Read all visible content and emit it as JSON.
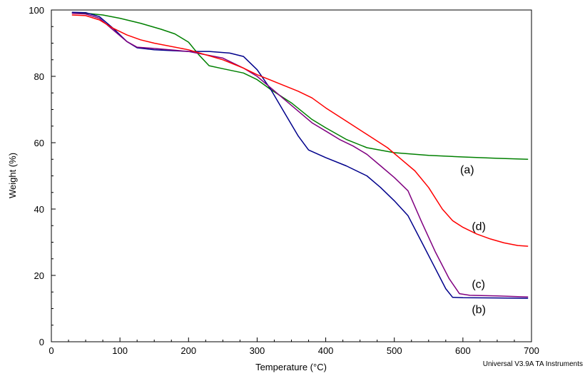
{
  "chart_data": {
    "type": "line",
    "title": "",
    "xlabel": "Temperature (°C)",
    "ylabel": "Weight (%)",
    "xlim": [
      0,
      700
    ],
    "ylim": [
      0,
      100
    ],
    "xticks": [
      0,
      100,
      200,
      300,
      400,
      500,
      600,
      700
    ],
    "yticks": [
      0,
      20,
      40,
      60,
      80,
      100
    ],
    "grid": false,
    "legend": "none",
    "series": [
      {
        "label": "(a)",
        "color": "#008000",
        "points": [
          [
            30,
            99.2
          ],
          [
            50,
            99.0
          ],
          [
            75,
            98.5
          ],
          [
            100,
            97.5
          ],
          [
            130,
            96.0
          ],
          [
            160,
            94.2
          ],
          [
            180,
            92.8
          ],
          [
            200,
            90.3
          ],
          [
            215,
            86.5
          ],
          [
            230,
            83.2
          ],
          [
            250,
            82.3
          ],
          [
            280,
            81.0
          ],
          [
            300,
            79.0
          ],
          [
            320,
            76.0
          ],
          [
            350,
            72.0
          ],
          [
            380,
            67.0
          ],
          [
            400,
            64.5
          ],
          [
            430,
            61.0
          ],
          [
            460,
            58.5
          ],
          [
            500,
            57.0
          ],
          [
            550,
            56.2
          ],
          [
            600,
            55.7
          ],
          [
            650,
            55.3
          ],
          [
            695,
            55.0
          ]
        ],
        "annotation_at": [
          596,
          50.7
        ]
      },
      {
        "label": "(b)",
        "color": "#00008B",
        "points": [
          [
            30,
            99.3
          ],
          [
            50,
            99.2
          ],
          [
            70,
            98.0
          ],
          [
            90,
            94.5
          ],
          [
            110,
            90.5
          ],
          [
            125,
            88.6
          ],
          [
            150,
            88.0
          ],
          [
            200,
            87.5
          ],
          [
            230,
            87.5
          ],
          [
            260,
            87.0
          ],
          [
            280,
            86.0
          ],
          [
            300,
            82.0
          ],
          [
            320,
            76.0
          ],
          [
            340,
            69.0
          ],
          [
            360,
            62.0
          ],
          [
            375,
            57.8
          ],
          [
            400,
            55.5
          ],
          [
            430,
            53.0
          ],
          [
            460,
            50.0
          ],
          [
            480,
            46.5
          ],
          [
            500,
            42.5
          ],
          [
            520,
            38.0
          ],
          [
            540,
            30.0
          ],
          [
            560,
            22.0
          ],
          [
            575,
            16.0
          ],
          [
            585,
            13.4
          ],
          [
            600,
            13.3
          ],
          [
            650,
            13.2
          ],
          [
            695,
            13.1
          ]
        ],
        "annotation_at": [
          613,
          8.6
        ]
      },
      {
        "label": "(c)",
        "color": "#800080",
        "points": [
          [
            30,
            99.0
          ],
          [
            50,
            98.8
          ],
          [
            70,
            97.5
          ],
          [
            90,
            94.0
          ],
          [
            110,
            90.5
          ],
          [
            125,
            88.8
          ],
          [
            150,
            88.4
          ],
          [
            200,
            87.5
          ],
          [
            250,
            85.5
          ],
          [
            280,
            82.5
          ],
          [
            300,
            80.0
          ],
          [
            320,
            76.5
          ],
          [
            340,
            73.0
          ],
          [
            360,
            69.5
          ],
          [
            380,
            66.0
          ],
          [
            400,
            63.5
          ],
          [
            420,
            61.0
          ],
          [
            440,
            59.0
          ],
          [
            460,
            56.5
          ],
          [
            480,
            53.0
          ],
          [
            500,
            49.5
          ],
          [
            520,
            45.5
          ],
          [
            540,
            36.0
          ],
          [
            560,
            27.0
          ],
          [
            580,
            19.0
          ],
          [
            595,
            14.5
          ],
          [
            610,
            14.0
          ],
          [
            650,
            13.8
          ],
          [
            695,
            13.5
          ]
        ],
        "annotation_at": [
          613,
          16.2
        ]
      },
      {
        "label": "(d)",
        "color": "#FF0000",
        "points": [
          [
            30,
            98.5
          ],
          [
            50,
            98.3
          ],
          [
            70,
            97.0
          ],
          [
            90,
            94.5
          ],
          [
            110,
            92.5
          ],
          [
            130,
            91.0
          ],
          [
            150,
            90.0
          ],
          [
            200,
            88.0
          ],
          [
            250,
            85.0
          ],
          [
            280,
            82.5
          ],
          [
            300,
            80.5
          ],
          [
            330,
            78.0
          ],
          [
            360,
            75.5
          ],
          [
            380,
            73.5
          ],
          [
            400,
            70.5
          ],
          [
            430,
            66.5
          ],
          [
            460,
            62.5
          ],
          [
            490,
            58.5
          ],
          [
            510,
            55.0
          ],
          [
            530,
            51.5
          ],
          [
            550,
            46.5
          ],
          [
            570,
            40.0
          ],
          [
            585,
            36.5
          ],
          [
            600,
            34.5
          ],
          [
            620,
            32.5
          ],
          [
            640,
            31.0
          ],
          [
            660,
            29.8
          ],
          [
            680,
            29.0
          ],
          [
            695,
            28.8
          ]
        ],
        "annotation_at": [
          613,
          33.7
        ]
      }
    ],
    "credit": "Universal V3.9A TA Instruments"
  }
}
